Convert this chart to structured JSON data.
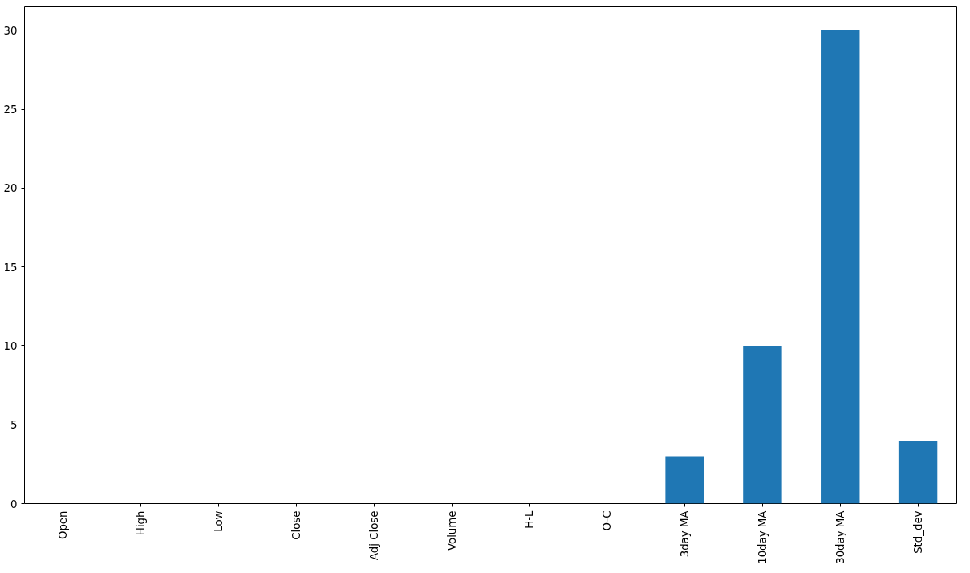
{
  "chart_data": {
    "type": "bar",
    "categories": [
      "Open",
      "High",
      "Low",
      "Close",
      "Adj Close",
      "Volume",
      "H-L",
      "O-C",
      "3day MA",
      "10day MA",
      "30day MA",
      "Std_dev"
    ],
    "values": [
      0,
      0,
      0,
      0,
      0,
      0,
      0,
      0,
      3,
      10,
      30,
      4
    ],
    "color": "#1f77b4",
    "ylim": [
      0,
      31.5
    ],
    "yticks": [
      0,
      5,
      10,
      15,
      20,
      25,
      30
    ],
    "grid": false
  }
}
